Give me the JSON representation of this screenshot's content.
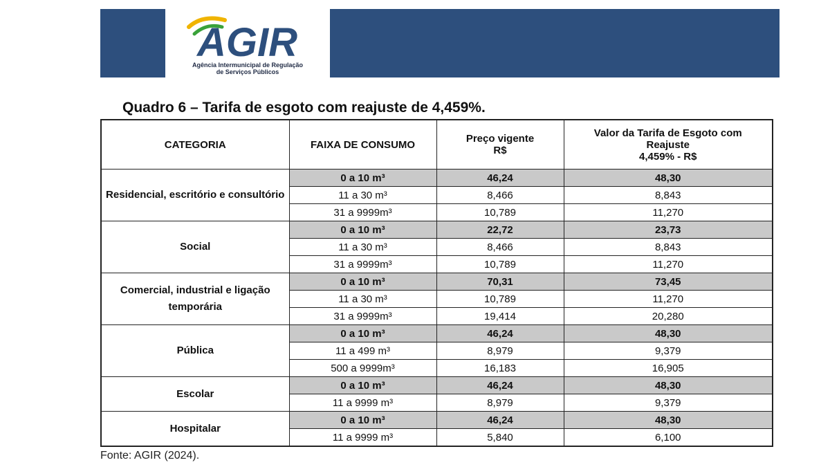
{
  "header": {
    "logo_text": "AGIR",
    "logo_subtitle_line1": "Agência Intermunicipal de Regulação",
    "logo_subtitle_line2": "de Serviços Públicos",
    "banner_color": "#2d4f7d"
  },
  "table": {
    "title": "Quadro 6 – Tarifa de esgoto com reajuste de 4,459%.",
    "headers": {
      "categoria": "CATEGORIA",
      "faixa": "FAIXA DE CONSUMO",
      "preco_line1": "Preço vigente",
      "preco_line2": "R$",
      "valor_line1": "Valor da Tarifa de Esgoto com",
      "valor_line2": "Reajuste",
      "valor_line3": "4,459% - R$"
    },
    "groups": [
      {
        "categoria": "Residencial, escritório e consultório",
        "rows": [
          {
            "faixa": "0 a 10 m³",
            "preco": "46,24",
            "valor": "48,30"
          },
          {
            "faixa": "11 a 30 m³",
            "preco": "8,466",
            "valor": "8,843"
          },
          {
            "faixa": "31 a 9999m³",
            "preco": "10,789",
            "valor": "11,270"
          }
        ]
      },
      {
        "categoria": "Social",
        "rows": [
          {
            "faixa": "0 a 10 m³",
            "preco": "22,72",
            "valor": "23,73"
          },
          {
            "faixa": "11 a 30 m³",
            "preco": "8,466",
            "valor": "8,843"
          },
          {
            "faixa": "31 a 9999m³",
            "preco": "10,789",
            "valor": "11,270"
          }
        ]
      },
      {
        "categoria": "Comercial, industrial e ligação temporária",
        "rows": [
          {
            "faixa": "0 a 10 m³",
            "preco": "70,31",
            "valor": "73,45"
          },
          {
            "faixa": "11 a 30 m³",
            "preco": "10,789",
            "valor": "11,270"
          },
          {
            "faixa": "31 a 9999m³",
            "preco": "19,414",
            "valor": "20,280"
          }
        ]
      },
      {
        "categoria": "Pública",
        "rows": [
          {
            "faixa": "0 a 10 m³",
            "preco": "46,24",
            "valor": "48,30"
          },
          {
            "faixa": "11 a 499 m³",
            "preco": "8,979",
            "valor": "9,379"
          },
          {
            "faixa": "500 a 9999m³",
            "preco": "16,183",
            "valor": "16,905"
          }
        ]
      },
      {
        "categoria": "Escolar",
        "rows": [
          {
            "faixa": "0 a 10 m³",
            "preco": "46,24",
            "valor": "48,30"
          },
          {
            "faixa": "11 a 9999 m³",
            "preco": "8,979",
            "valor": "9,379"
          }
        ]
      },
      {
        "categoria": "Hospitalar",
        "rows": [
          {
            "faixa": "0 a 10 m³",
            "preco": "46,24",
            "valor": "48,30"
          },
          {
            "faixa": "11 a 9999 m³",
            "preco": "5,840",
            "valor": "6,100"
          }
        ]
      }
    ],
    "base_row_shade": "#c9c9c9"
  },
  "source": "Fonte: AGIR (2024)."
}
